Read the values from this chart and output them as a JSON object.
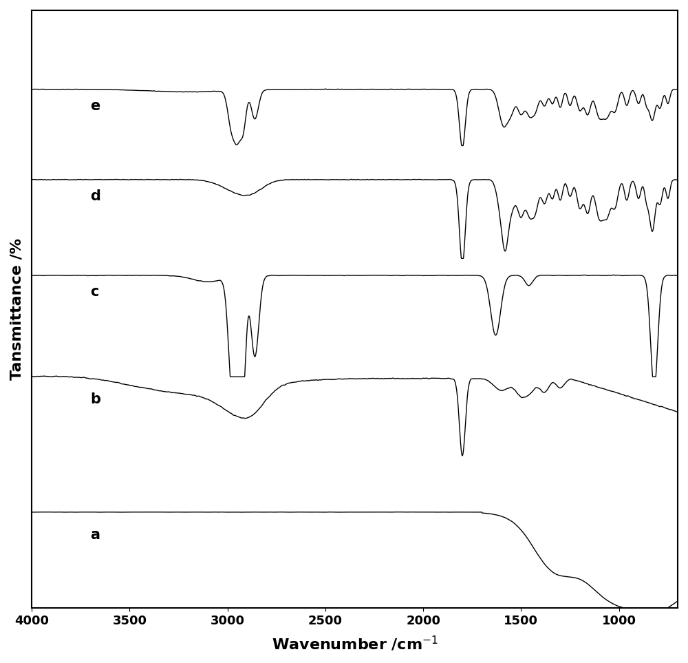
{
  "xlabel": "Wavenumber /cm$^{-1}$",
  "ylabel": "Tansmittance /%",
  "xlim": [
    4000,
    700
  ],
  "xticks": [
    4000,
    3500,
    3000,
    2500,
    2000,
    1500,
    1000
  ],
  "curve_labels": [
    "a",
    "b",
    "c",
    "d",
    "e"
  ],
  "background_color": "#ffffff",
  "line_color": "#000000",
  "line_width": 1.0
}
